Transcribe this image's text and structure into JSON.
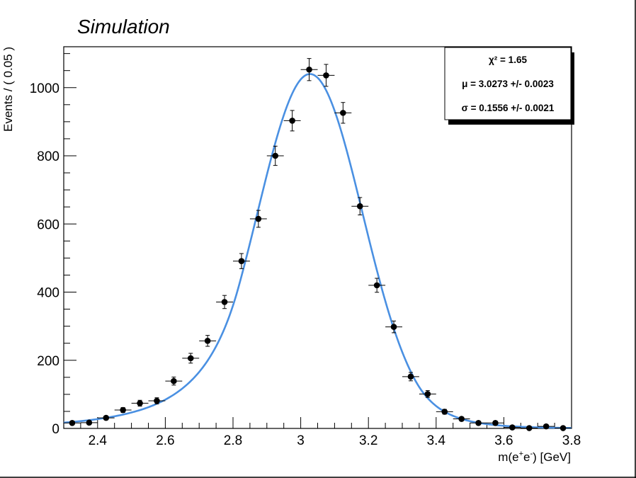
{
  "chart_data": {
    "type": "scatter",
    "title": "Simulation",
    "xlabel": "m(e⁺e⁻) [GeV]",
    "ylabel": "Events / ( 0.05 )",
    "xlim": [
      2.3,
      3.8
    ],
    "ylim": [
      0,
      1120
    ],
    "xticks": [
      2.4,
      2.6,
      2.8,
      3.0,
      3.2,
      3.4,
      3.6,
      3.8
    ],
    "xtick_labels": [
      "2.4",
      "2.6",
      "2.8",
      "3",
      "3.2",
      "3.4",
      "3.6",
      "3.8"
    ],
    "yticks": [
      0,
      200,
      400,
      600,
      800,
      1000
    ],
    "ytick_labels": [
      "0",
      "200",
      "400",
      "600",
      "800",
      "1000"
    ],
    "grid": false,
    "bin_width": 0.05,
    "series": [
      {
        "kind": "points",
        "color": "#000000",
        "x": [
          2.325,
          2.375,
          2.425,
          2.475,
          2.525,
          2.575,
          2.625,
          2.675,
          2.725,
          2.775,
          2.825,
          2.875,
          2.925,
          2.975,
          3.025,
          3.075,
          3.125,
          3.175,
          3.225,
          3.275,
          3.325,
          3.375,
          3.425,
          3.475,
          3.525,
          3.575,
          3.625,
          3.675,
          3.725,
          3.775
        ],
        "y": [
          16,
          17,
          31,
          54,
          74,
          81,
          139,
          206,
          257,
          371,
          491,
          615,
          800,
          903,
          1053,
          1036,
          926,
          652,
          420,
          298,
          152,
          101,
          49,
          28,
          16,
          16,
          3,
          1,
          6,
          1
        ]
      },
      {
        "kind": "fit",
        "color": "#4a90e2",
        "model": "double-sided crystal ball",
        "mu": 3.0273,
        "sigma": 0.1556,
        "peak": 1040,
        "alpha_low": 1.35,
        "n_low": 5.0,
        "alpha_high": 2.0,
        "n_high": 10.0
      }
    ]
  },
  "stats_box": {
    "chi2": "χ² = 1.65",
    "mu": "μ = 3.0273 +/- 0.0023",
    "sigma": "σ = 0.1556 +/- 0.0021"
  }
}
